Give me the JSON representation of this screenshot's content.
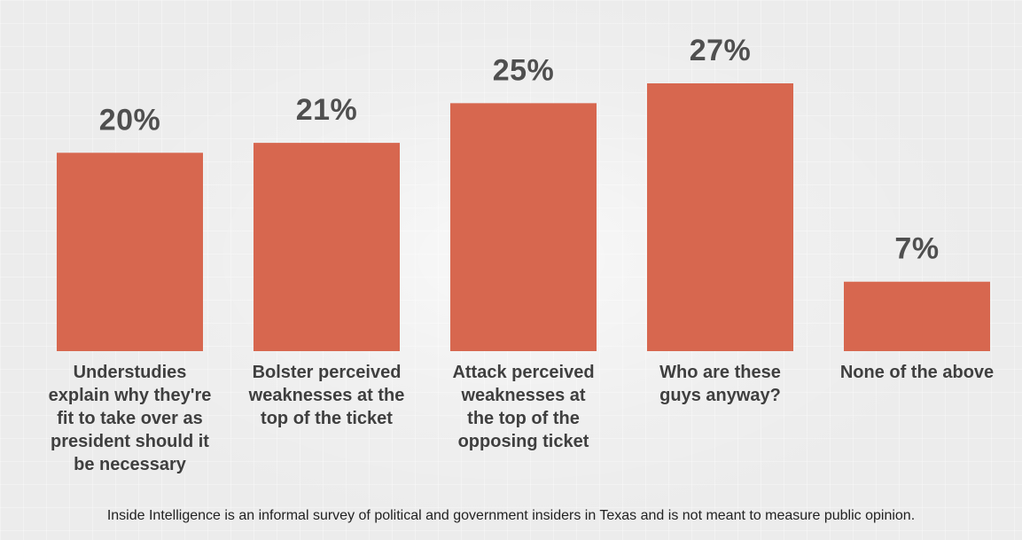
{
  "chart_data": {
    "type": "bar",
    "categories": [
      "Understudies explain why they're fit to take over as president should it be necessary",
      "Bolster perceived weaknesses at the top of the ticket",
      "Attack perceived weaknesses at the top of the opposing ticket",
      "Who are these guys anyway?",
      "None of the above"
    ],
    "category_lines": [
      [
        "Understudies",
        "explain why they're",
        "fit to take over as",
        "president should it",
        "be necessary"
      ],
      [
        "Bolster perceived",
        "weaknesses at the",
        "top of the ticket"
      ],
      [
        "Attack perceived",
        "weaknesses at",
        "the top of the",
        "opposing ticket"
      ],
      [
        "Who are these",
        "guys anyway?"
      ],
      [
        "None of the above"
      ]
    ],
    "values": [
      20,
      21,
      25,
      27,
      7
    ],
    "value_labels": [
      "20%",
      "21%",
      "25%",
      "27%",
      "7%"
    ],
    "ylim": [
      0,
      27
    ],
    "bar_color": "#d7674f",
    "grid": false
  },
  "footnote": "Inside Intelligence is an informal survey of political and government insiders in Texas and is not meant to measure public opinion."
}
